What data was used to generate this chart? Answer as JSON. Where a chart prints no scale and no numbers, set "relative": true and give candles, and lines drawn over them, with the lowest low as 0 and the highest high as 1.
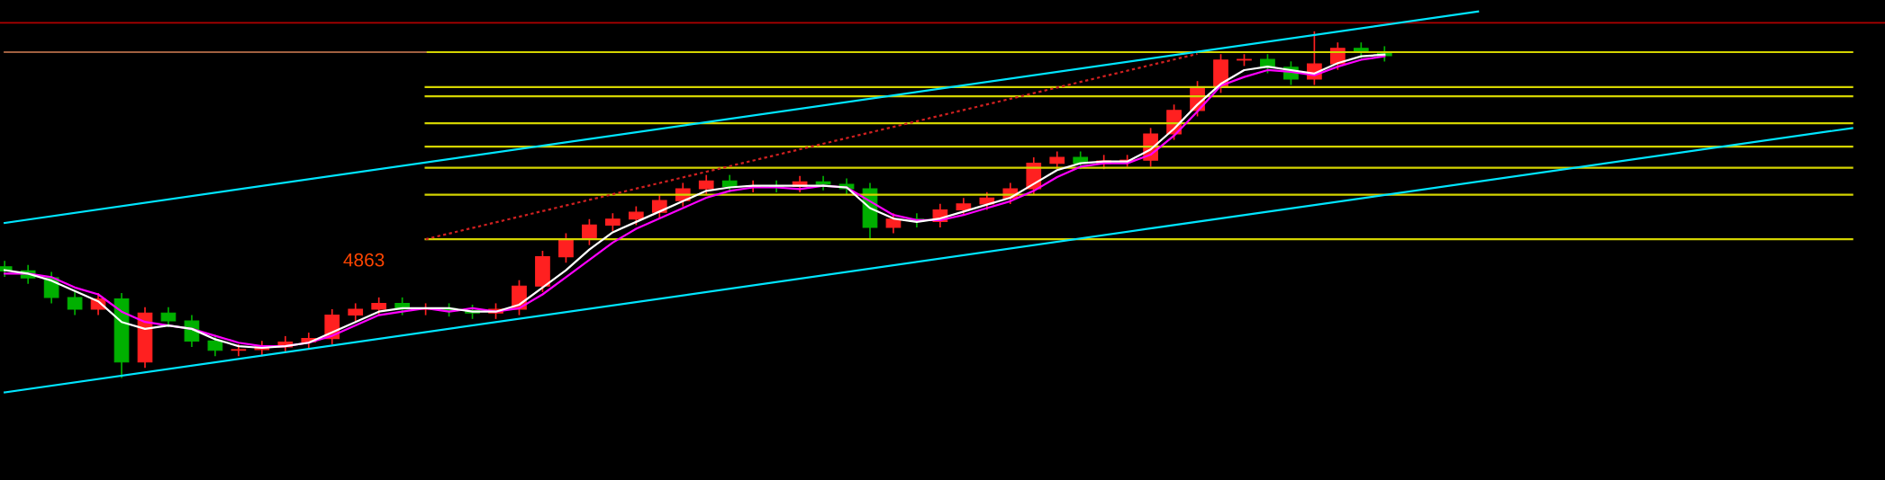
{
  "chart_data": {
    "type": "candlestick",
    "relative": true,
    "categories": [
      null,
      null,
      null,
      null,
      null,
      null,
      null,
      null,
      null,
      null,
      null,
      null,
      null,
      null,
      null,
      null,
      null,
      null,
      null,
      null,
      null,
      null,
      null,
      null,
      null,
      null,
      null,
      null,
      null,
      null,
      null,
      null,
      null,
      null,
      null,
      null,
      null,
      null,
      null,
      null,
      null,
      null,
      null,
      null,
      null,
      null,
      null,
      null,
      null,
      null,
      null,
      null,
      null,
      null,
      null,
      null,
      null,
      null,
      null,
      null,
      null,
      null,
      null,
      null,
      null,
      null,
      null,
      null,
      null,
      null,
      null,
      null,
      null,
      null,
      null,
      null,
      null,
      null,
      null,
      null
    ],
    "ohlc": [
      [
        0.32,
        0.335,
        0.293,
        0.308
      ],
      [
        0.308,
        0.323,
        0.273,
        0.288
      ],
      [
        0.288,
        0.303,
        0.216,
        0.231
      ],
      [
        0.231,
        0.246,
        0.182,
        0.197
      ],
      [
        0.197,
        0.242,
        0.182,
        0.227
      ],
      [
        0.227,
        0.242,
        0.0,
        0.044
      ],
      [
        0.044,
        0.201,
        0.029,
        0.186
      ],
      [
        0.186,
        0.201,
        0.148,
        0.163
      ],
      [
        0.163,
        0.178,
        0.09,
        0.105
      ],
      [
        0.105,
        0.12,
        0.063,
        0.078
      ],
      [
        0.078,
        0.093,
        0.063,
        0.08
      ],
      [
        0.08,
        0.103,
        0.063,
        0.088
      ],
      [
        0.088,
        0.117,
        0.073,
        0.102
      ],
      [
        0.102,
        0.127,
        0.087,
        0.112
      ],
      [
        0.112,
        0.195,
        0.097,
        0.18
      ],
      [
        0.18,
        0.212,
        0.165,
        0.197
      ],
      [
        0.197,
        0.229,
        0.182,
        0.214
      ],
      [
        0.214,
        0.229,
        0.182,
        0.197
      ],
      [
        0.197,
        0.212,
        0.182,
        0.199
      ],
      [
        0.199,
        0.212,
        0.178,
        0.193
      ],
      [
        0.193,
        0.208,
        0.171,
        0.186
      ],
      [
        0.186,
        0.212,
        0.171,
        0.197
      ],
      [
        0.197,
        0.279,
        0.182,
        0.264
      ],
      [
        0.264,
        0.364,
        0.249,
        0.349
      ],
      [
        0.349,
        0.415,
        0.334,
        0.4
      ],
      [
        0.4,
        0.456,
        0.385,
        0.441
      ],
      [
        0.441,
        0.473,
        0.426,
        0.458
      ],
      [
        0.458,
        0.493,
        0.443,
        0.478
      ],
      [
        0.478,
        0.527,
        0.463,
        0.512
      ],
      [
        0.512,
        0.561,
        0.497,
        0.546
      ],
      [
        0.546,
        0.584,
        0.531,
        0.569
      ],
      [
        0.569,
        0.584,
        0.538,
        0.553
      ],
      [
        0.553,
        0.568,
        0.538,
        0.555
      ],
      [
        0.555,
        0.568,
        0.538,
        0.553
      ],
      [
        0.553,
        0.581,
        0.538,
        0.566
      ],
      [
        0.566,
        0.581,
        0.544,
        0.559
      ],
      [
        0.559,
        0.574,
        0.531,
        0.546
      ],
      [
        0.546,
        0.561,
        0.4,
        0.434
      ],
      [
        0.434,
        0.473,
        0.419,
        0.458
      ],
      [
        0.458,
        0.473,
        0.436,
        0.451
      ],
      [
        0.451,
        0.5,
        0.436,
        0.485
      ],
      [
        0.485,
        0.517,
        0.47,
        0.502
      ],
      [
        0.502,
        0.534,
        0.487,
        0.519
      ],
      [
        0.519,
        0.561,
        0.504,
        0.546
      ],
      [
        0.546,
        0.635,
        0.531,
        0.62
      ],
      [
        0.62,
        0.652,
        0.605,
        0.637
      ],
      [
        0.637,
        0.652,
        0.605,
        0.62
      ],
      [
        0.62,
        0.642,
        0.605,
        0.627
      ],
      [
        0.627,
        0.642,
        0.612,
        0.629
      ],
      [
        0.629,
        0.72,
        0.612,
        0.705
      ],
      [
        0.705,
        0.788,
        0.69,
        0.773
      ],
      [
        0.773,
        0.856,
        0.758,
        0.841
      ],
      [
        0.841,
        0.934,
        0.826,
        0.919
      ],
      [
        0.919,
        0.934,
        0.904,
        0.921
      ],
      [
        0.921,
        0.934,
        0.883,
        0.898
      ],
      [
        0.898,
        0.913,
        0.849,
        0.864
      ],
      [
        0.864,
        1.0,
        0.849,
        0.908
      ],
      [
        0.908,
        0.968,
        0.893,
        0.953
      ],
      [
        0.953,
        0.968,
        0.927,
        0.942
      ],
      [
        0.942,
        0.957,
        0.917,
        0.932
      ],
      null,
      null,
      null,
      null,
      null,
      null,
      null,
      null,
      null,
      null,
      null,
      null,
      null,
      null,
      null,
      null,
      null,
      null,
      null,
      null
    ],
    "series": [
      {
        "type": "line",
        "color": "#ffffff",
        "values": [
          0.31,
          0.3,
          0.28,
          0.25,
          0.22,
          0.16,
          0.14,
          0.15,
          0.14,
          0.11,
          0.09,
          0.085,
          0.09,
          0.1,
          0.13,
          0.16,
          0.19,
          0.2,
          0.2,
          0.2,
          0.19,
          0.19,
          0.21,
          0.26,
          0.31,
          0.37,
          0.42,
          0.45,
          0.48,
          0.51,
          0.54,
          0.55,
          0.555,
          0.555,
          0.555,
          0.555,
          0.55,
          0.49,
          0.46,
          0.45,
          0.46,
          0.48,
          0.5,
          0.52,
          0.56,
          0.6,
          0.62,
          0.625,
          0.625,
          0.66,
          0.72,
          0.79,
          0.85,
          0.89,
          0.9,
          0.89,
          0.88,
          0.91,
          0.93,
          0.935,
          null,
          null,
          null,
          null,
          null,
          null,
          null,
          null,
          null,
          null,
          null,
          null,
          null,
          null,
          null,
          null,
          null,
          null,
          null,
          null
        ]
      },
      {
        "type": "line",
        "color": "#ff00ff",
        "values": [
          0.3,
          0.3,
          0.29,
          0.26,
          0.24,
          0.19,
          0.16,
          0.15,
          0.14,
          0.12,
          0.1,
          0.09,
          0.09,
          0.1,
          0.12,
          0.15,
          0.18,
          0.19,
          0.2,
          0.19,
          0.2,
          0.19,
          0.2,
          0.24,
          0.29,
          0.34,
          0.39,
          0.43,
          0.46,
          0.49,
          0.52,
          0.54,
          0.55,
          0.55,
          0.545,
          0.555,
          0.55,
          0.51,
          0.47,
          0.455,
          0.455,
          0.47,
          0.49,
          0.51,
          0.54,
          0.58,
          0.61,
          0.62,
          0.62,
          0.645,
          0.7,
          0.77,
          0.845,
          0.87,
          0.89,
          0.885,
          0.875,
          0.9,
          0.92,
          0.93,
          null,
          null,
          null,
          null,
          null,
          null,
          null,
          null,
          null,
          null,
          null,
          null,
          null,
          null,
          null,
          null,
          null,
          null,
          null,
          null
        ]
      },
      {
        "type": "line",
        "color": "#00e5ff",
        "values": [
          -0.044,
          null,
          null,
          null,
          null,
          null,
          null,
          null,
          null,
          null,
          null,
          null,
          null,
          null,
          null,
          null,
          null,
          null,
          null,
          null,
          null,
          null,
          null,
          null,
          null,
          null,
          null,
          null,
          null,
          null,
          null,
          null,
          null,
          null,
          null,
          null,
          null,
          null,
          null,
          null,
          null,
          null,
          null,
          null,
          null,
          null,
          null,
          null,
          null,
          null,
          null,
          null,
          null,
          null,
          null,
          null,
          null,
          null,
          null,
          null,
          null,
          null,
          null,
          null,
          null,
          null,
          null,
          null,
          null,
          null,
          null,
          null,
          null,
          null,
          null,
          null,
          null,
          null,
          null,
          0.722
        ]
      },
      {
        "type": "line",
        "color": "#00e5ff",
        "values": [
          0.447,
          null,
          null,
          null,
          null,
          null,
          null,
          null,
          null,
          null,
          null,
          null,
          null,
          null,
          null,
          null,
          null,
          null,
          null,
          null,
          null,
          null,
          null,
          null,
          null,
          null,
          null,
          null,
          null,
          null,
          null,
          null,
          null,
          null,
          null,
          null,
          null,
          null,
          null,
          null,
          null,
          null,
          null,
          null,
          null,
          null,
          null,
          null,
          null,
          null,
          null,
          null,
          null,
          null,
          null,
          null,
          null,
          null,
          null,
          null,
          null,
          null,
          null,
          1.06,
          null,
          null,
          null,
          null,
          null,
          null,
          null,
          null,
          null,
          null,
          null,
          null,
          null,
          null,
          null,
          null
        ]
      },
      {
        "type": "line",
        "color": "#d02020",
        "line_style": "dotted",
        "values": [
          null,
          null,
          null,
          null,
          null,
          null,
          null,
          null,
          null,
          null,
          null,
          null,
          null,
          null,
          null,
          null,
          null,
          null,
          0.4,
          null,
          null,
          null,
          null,
          null,
          null,
          null,
          null,
          null,
          null,
          null,
          null,
          null,
          null,
          null,
          null,
          null,
          null,
          null,
          null,
          null,
          null,
          null,
          null,
          null,
          null,
          null,
          null,
          null,
          null,
          null,
          null,
          0.937,
          null,
          null,
          null,
          null,
          null,
          null,
          null,
          null,
          null,
          null,
          null,
          null,
          null,
          null,
          null,
          null,
          null,
          null,
          null,
          null,
          null,
          null,
          null,
          null,
          null,
          null,
          null,
          null
        ]
      },
      {
        "type": "line",
        "color": "#a06040",
        "values": [
          0.942,
          null,
          null,
          null,
          null,
          null,
          null,
          null,
          null,
          null,
          null,
          null,
          null,
          null,
          null,
          null,
          null,
          null,
          0.942,
          null,
          null,
          null,
          null,
          null,
          null,
          null,
          null,
          null,
          null,
          null,
          null,
          null,
          null,
          null,
          null,
          null,
          null,
          null,
          null,
          null,
          null,
          null,
          null,
          null,
          null,
          null,
          null,
          null,
          null,
          null,
          null,
          null,
          null,
          null,
          null,
          null,
          null,
          null,
          null,
          null,
          null,
          null,
          null,
          null,
          null,
          null,
          null,
          null,
          null,
          null,
          null,
          null,
          null,
          null,
          null,
          null,
          null,
          null,
          null,
          null
        ]
      },
      {
        "type": "line",
        "color": "#d4d400",
        "values": [
          null,
          null,
          null,
          null,
          null,
          null,
          null,
          null,
          null,
          null,
          null,
          null,
          null,
          null,
          null,
          null,
          null,
          null,
          0.942,
          null,
          null,
          null,
          null,
          null,
          null,
          null,
          null,
          null,
          null,
          null,
          null,
          null,
          null,
          null,
          null,
          null,
          null,
          null,
          null,
          null,
          null,
          null,
          null,
          null,
          null,
          null,
          null,
          null,
          null,
          null,
          null,
          null,
          null,
          null,
          null,
          null,
          null,
          null,
          null,
          null,
          null,
          null,
          null,
          null,
          null,
          null,
          null,
          null,
          null,
          null,
          null,
          null,
          null,
          null,
          null,
          null,
          null,
          null,
          null,
          0.942
        ]
      },
      {
        "type": "line",
        "color": "#d4d400",
        "values": [
          null,
          null,
          null,
          null,
          null,
          null,
          null,
          null,
          null,
          null,
          null,
          null,
          null,
          null,
          null,
          null,
          null,
          null,
          0.841,
          null,
          null,
          null,
          null,
          null,
          null,
          null,
          null,
          null,
          null,
          null,
          null,
          null,
          null,
          null,
          null,
          null,
          null,
          null,
          null,
          null,
          null,
          null,
          null,
          null,
          null,
          null,
          null,
          null,
          null,
          null,
          null,
          null,
          null,
          null,
          null,
          null,
          null,
          null,
          null,
          null,
          null,
          null,
          null,
          null,
          null,
          null,
          null,
          null,
          null,
          null,
          null,
          null,
          null,
          null,
          null,
          null,
          null,
          null,
          null,
          0.841
        ]
      },
      {
        "type": "line",
        "color": "#d4d400",
        "values": [
          null,
          null,
          null,
          null,
          null,
          null,
          null,
          null,
          null,
          null,
          null,
          null,
          null,
          null,
          null,
          null,
          null,
          null,
          0.814,
          null,
          null,
          null,
          null,
          null,
          null,
          null,
          null,
          null,
          null,
          null,
          null,
          null,
          null,
          null,
          null,
          null,
          null,
          null,
          null,
          null,
          null,
          null,
          null,
          null,
          null,
          null,
          null,
          null,
          null,
          null,
          null,
          null,
          null,
          null,
          null,
          null,
          null,
          null,
          null,
          null,
          null,
          null,
          null,
          null,
          null,
          null,
          null,
          null,
          null,
          null,
          null,
          null,
          null,
          null,
          null,
          null,
          null,
          null,
          null,
          0.814
        ]
      },
      {
        "type": "line",
        "color": "#d4d400",
        "values": [
          null,
          null,
          null,
          null,
          null,
          null,
          null,
          null,
          null,
          null,
          null,
          null,
          null,
          null,
          null,
          null,
          null,
          null,
          0.736,
          null,
          null,
          null,
          null,
          null,
          null,
          null,
          null,
          null,
          null,
          null,
          null,
          null,
          null,
          null,
          null,
          null,
          null,
          null,
          null,
          null,
          null,
          null,
          null,
          null,
          null,
          null,
          null,
          null,
          null,
          null,
          null,
          null,
          null,
          null,
          null,
          null,
          null,
          null,
          null,
          null,
          null,
          null,
          null,
          null,
          null,
          null,
          null,
          null,
          null,
          null,
          null,
          null,
          null,
          null,
          null,
          null,
          null,
          null,
          null,
          0.736
        ]
      },
      {
        "type": "line",
        "color": "#d4d400",
        "values": [
          null,
          null,
          null,
          null,
          null,
          null,
          null,
          null,
          null,
          null,
          null,
          null,
          null,
          null,
          null,
          null,
          null,
          null,
          0.668,
          null,
          null,
          null,
          null,
          null,
          null,
          null,
          null,
          null,
          null,
          null,
          null,
          null,
          null,
          null,
          null,
          null,
          null,
          null,
          null,
          null,
          null,
          null,
          null,
          null,
          null,
          null,
          null,
          null,
          null,
          null,
          null,
          null,
          null,
          null,
          null,
          null,
          null,
          null,
          null,
          null,
          null,
          null,
          null,
          null,
          null,
          null,
          null,
          null,
          null,
          null,
          null,
          null,
          null,
          null,
          null,
          null,
          null,
          null,
          null,
          0.668
        ]
      },
      {
        "type": "line",
        "color": "#d4d400",
        "values": [
          null,
          null,
          null,
          null,
          null,
          null,
          null,
          null,
          null,
          null,
          null,
          null,
          null,
          null,
          null,
          null,
          null,
          null,
          0.607,
          null,
          null,
          null,
          null,
          null,
          null,
          null,
          null,
          null,
          null,
          null,
          null,
          null,
          null,
          null,
          null,
          null,
          null,
          null,
          null,
          null,
          null,
          null,
          null,
          null,
          null,
          null,
          null,
          null,
          null,
          null,
          null,
          null,
          null,
          null,
          null,
          null,
          null,
          null,
          null,
          null,
          null,
          null,
          null,
          null,
          null,
          null,
          null,
          null,
          null,
          null,
          null,
          null,
          null,
          null,
          null,
          null,
          null,
          null,
          null,
          0.607
        ]
      },
      {
        "type": "line",
        "color": "#d4d400",
        "values": [
          null,
          null,
          null,
          null,
          null,
          null,
          null,
          null,
          null,
          null,
          null,
          null,
          null,
          null,
          null,
          null,
          null,
          null,
          0.529,
          null,
          null,
          null,
          null,
          null,
          null,
          null,
          null,
          null,
          null,
          null,
          null,
          null,
          null,
          null,
          null,
          null,
          null,
          null,
          null,
          null,
          null,
          null,
          null,
          null,
          null,
          null,
          null,
          null,
          null,
          null,
          null,
          null,
          null,
          null,
          null,
          null,
          null,
          null,
          null,
          null,
          null,
          null,
          null,
          null,
          null,
          null,
          null,
          null,
          null,
          null,
          null,
          null,
          null,
          null,
          null,
          null,
          null,
          null,
          null,
          0.529
        ]
      },
      {
        "type": "line",
        "color": "#d4d400",
        "values": [
          null,
          null,
          null,
          null,
          null,
          null,
          null,
          null,
          null,
          null,
          null,
          null,
          null,
          null,
          null,
          null,
          null,
          null,
          0.4,
          null,
          null,
          null,
          null,
          null,
          null,
          null,
          null,
          null,
          null,
          null,
          null,
          null,
          null,
          null,
          null,
          null,
          null,
          null,
          null,
          null,
          null,
          null,
          null,
          null,
          null,
          null,
          null,
          null,
          null,
          null,
          null,
          null,
          null,
          null,
          null,
          null,
          null,
          null,
          null,
          null,
          null,
          null,
          null,
          null,
          null,
          null,
          null,
          null,
          null,
          null,
          null,
          null,
          null,
          null,
          null,
          null,
          null,
          null,
          null,
          0.4
        ]
      }
    ],
    "ref_lines": [
      {
        "axis": "y",
        "value": 1.027,
        "color": "#b00000"
      }
    ],
    "annotations": [
      "4863"
    ]
  }
}
